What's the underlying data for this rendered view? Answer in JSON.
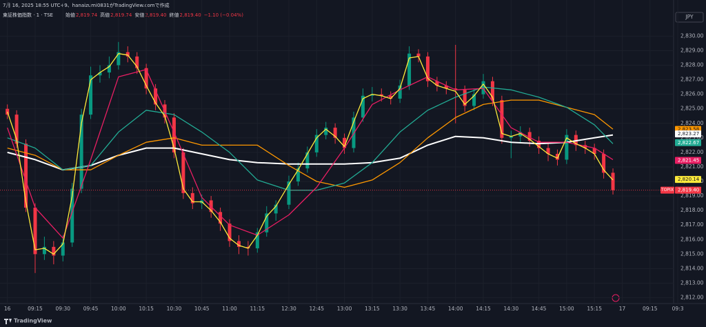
{
  "chart_data": {
    "type": "candlestick",
    "title": "7月 16, 2025 18:55 UTC+9、hanaizumi0831がTradingView.comで作成",
    "subtitle": "東証株価指数 · 1 · TSE",
    "ohlc_info": [
      {
        "label": "始値",
        "value": "2,819.74"
      },
      {
        "label": "高値",
        "value": "2,819.74"
      },
      {
        "label": "安値",
        "value": "2,819.40"
      },
      {
        "label": "終値",
        "value": "2,819.40"
      },
      {
        "label": "",
        "value": "−1.10 (−0.04%)"
      }
    ],
    "currency": "JPY",
    "brand": "TradingView",
    "colors": {
      "up": "#089981",
      "down": "#f23645",
      "last": "#f23645"
    },
    "xlim": [
      -1,
      359
    ],
    "ylim": [
      2811.6,
      2831.3
    ],
    "grid": true,
    "xticks": [
      {
        "value": 0,
        "label": "16"
      },
      {
        "value": 15,
        "label": "09:15"
      },
      {
        "value": 30,
        "label": "09:30"
      },
      {
        "value": 45,
        "label": "09:45"
      },
      {
        "value": 60,
        "label": "10:00"
      },
      {
        "value": 75,
        "label": "10:15"
      },
      {
        "value": 90,
        "label": "10:30"
      },
      {
        "value": 105,
        "label": "10:45"
      },
      {
        "value": 120,
        "label": "11:00"
      },
      {
        "value": 135,
        "label": "11:15"
      },
      {
        "value": 152,
        "label": "12:30"
      },
      {
        "value": 167,
        "label": "12:45"
      },
      {
        "value": 182,
        "label": "13:00"
      },
      {
        "value": 197,
        "label": "13:15"
      },
      {
        "value": 212,
        "label": "13:30"
      },
      {
        "value": 227,
        "label": "13:45"
      },
      {
        "value": 242,
        "label": "14:00"
      },
      {
        "value": 257,
        "label": "14:15"
      },
      {
        "value": 272,
        "label": "14:30"
      },
      {
        "value": 287,
        "label": "14:45"
      },
      {
        "value": 302,
        "label": "15:00"
      },
      {
        "value": 317,
        "label": "15:15"
      },
      {
        "value": 332,
        "label": "17"
      },
      {
        "value": 347,
        "label": "09:15"
      },
      {
        "value": 362,
        "label": "09:3"
      }
    ],
    "yticks": [
      {
        "value": 2812,
        "label": "2,812.00"
      },
      {
        "value": 2813,
        "label": "2,813.00"
      },
      {
        "value": 2814,
        "label": "2,814.00"
      },
      {
        "value": 2815,
        "label": "2,815.00"
      },
      {
        "value": 2816,
        "label": "2,816.00"
      },
      {
        "value": 2817,
        "label": "2,817.00"
      },
      {
        "value": 2818,
        "label": "2,818.00"
      },
      {
        "value": 2819,
        "label": "2,819.00"
      },
      {
        "value": 2820,
        "label": "2,820.00"
      },
      {
        "value": 2821,
        "label": "2,821.00"
      },
      {
        "value": 2822,
        "label": "2,822.00"
      },
      {
        "value": 2823,
        "label": "2,823.00"
      },
      {
        "value": 2824,
        "label": "2,824.00"
      },
      {
        "value": 2825,
        "label": "2,825.00"
      },
      {
        "value": 2826,
        "label": "2,826.00"
      },
      {
        "value": 2827,
        "label": "2,827.00"
      },
      {
        "value": 2828,
        "label": "2,828.00"
      },
      {
        "value": 2829,
        "label": "2,829.00"
      },
      {
        "value": 2830,
        "label": "2,830.00"
      }
    ],
    "candles": {
      "x": [
        0,
        5,
        10,
        15,
        20,
        25,
        30,
        35,
        40,
        45,
        50,
        55,
        60,
        65,
        70,
        75,
        80,
        85,
        90,
        95,
        100,
        105,
        110,
        115,
        120,
        125,
        130,
        135,
        140,
        145,
        152,
        157,
        162,
        167,
        172,
        177,
        182,
        187,
        192,
        197,
        202,
        207,
        212,
        217,
        222,
        227,
        232,
        237,
        242,
        247,
        252,
        257,
        262,
        267,
        272,
        277,
        282,
        287,
        292,
        297,
        302,
        307,
        312,
        317,
        322,
        327
      ],
      "open": [
        2825.0,
        2824.6,
        2822.6,
        2818.2,
        2815.0,
        2815.5,
        2814.9,
        2815.8,
        2819.5,
        2824.6,
        2827.3,
        2827.5,
        2828.0,
        2828.9,
        2828.6,
        2827.8,
        2826.4,
        2825.3,
        2824.4,
        2822.0,
        2819.2,
        2818.5,
        2818.7,
        2817.9,
        2817.1,
        2815.9,
        2815.5,
        2815.4,
        2816.5,
        2817.8,
        2818.4,
        2820.0,
        2820.9,
        2822.0,
        2823.2,
        2823.7,
        2823.0,
        2822.3,
        2824.4,
        2825.9,
        2826.0,
        2825.9,
        2825.7,
        2826.6,
        2828.8,
        2828.6,
        2826.9,
        2826.6,
        2826.4,
        2826.3,
        2825.2,
        2826.0,
        2826.9,
        2825.6,
        2823.0,
        2823.1,
        2823.4,
        2822.8,
        2822.3,
        2821.9,
        2821.5,
        2823.2,
        2822.5,
        2822.3,
        2821.9,
        2820.6
      ],
      "high": [
        2825.3,
        2824.9,
        2822.9,
        2818.5,
        2816.2,
        2815.9,
        2816.3,
        2819.9,
        2825.0,
        2827.9,
        2828.0,
        2828.6,
        2829.6,
        2829.3,
        2828.9,
        2828.1,
        2826.7,
        2825.6,
        2824.7,
        2822.3,
        2819.6,
        2819.1,
        2819.0,
        2818.2,
        2817.4,
        2816.3,
        2815.9,
        2816.8,
        2818.3,
        2818.7,
        2820.4,
        2821.3,
        2822.4,
        2823.6,
        2824.1,
        2824.0,
        2823.3,
        2824.8,
        2826.4,
        2826.5,
        2826.4,
        2826.2,
        2827.0,
        2829.3,
        2829.1,
        2828.9,
        2827.2,
        2826.9,
        2829.4,
        2826.6,
        2826.4,
        2827.4,
        2827.2,
        2825.9,
        2823.5,
        2823.8,
        2823.7,
        2823.1,
        2822.6,
        2822.2,
        2823.6,
        2823.5,
        2822.8,
        2822.6,
        2822.2,
        2820.9
      ],
      "low": [
        2824.3,
        2822.3,
        2817.9,
        2813.7,
        2814.6,
        2814.3,
        2814.5,
        2815.5,
        2819.2,
        2824.3,
        2826.8,
        2827.1,
        2827.7,
        2828.2,
        2827.4,
        2826.0,
        2824.9,
        2824.0,
        2821.6,
        2818.8,
        2818.1,
        2818.1,
        2817.5,
        2816.6,
        2815.5,
        2815.0,
        2814.9,
        2815.1,
        2816.2,
        2817.3,
        2818.1,
        2819.7,
        2820.6,
        2821.7,
        2822.9,
        2822.6,
        2821.9,
        2822.0,
        2824.1,
        2825.5,
        2825.5,
        2825.3,
        2825.4,
        2826.3,
        2828.2,
        2826.5,
        2826.2,
        2826.0,
        2824.0,
        2824.8,
        2824.9,
        2825.7,
        2825.2,
        2822.6,
        2821.6,
        2822.7,
        2822.4,
        2821.9,
        2821.4,
        2821.1,
        2821.2,
        2822.1,
        2821.9,
        2821.5,
        2820.2,
        2819.1
      ],
      "close": [
        2824.6,
        2822.6,
        2818.2,
        2815.0,
        2815.5,
        2814.9,
        2815.8,
        2819.5,
        2824.6,
        2827.3,
        2827.5,
        2828.0,
        2828.9,
        2828.6,
        2827.8,
        2826.4,
        2825.3,
        2824.4,
        2822.0,
        2819.2,
        2818.5,
        2818.7,
        2817.9,
        2817.1,
        2815.9,
        2815.5,
        2815.4,
        2816.5,
        2817.8,
        2818.4,
        2820.0,
        2820.9,
        2822.0,
        2823.2,
        2823.7,
        2823.0,
        2822.3,
        2824.4,
        2825.9,
        2826.0,
        2825.9,
        2825.7,
        2826.6,
        2828.8,
        2828.6,
        2826.9,
        2826.6,
        2826.4,
        2826.3,
        2825.2,
        2826.0,
        2826.9,
        2825.6,
        2823.0,
        2823.1,
        2823.4,
        2822.8,
        2822.3,
        2821.9,
        2821.5,
        2823.2,
        2822.5,
        2822.3,
        2821.9,
        2820.6,
        2819.4
      ]
    },
    "series": [
      {
        "color": "#ffffff",
        "width": 2,
        "x": [
          0,
          15,
          30,
          45,
          60,
          75,
          90,
          105,
          120,
          135,
          152,
          167,
          182,
          197,
          212,
          227,
          242,
          257,
          272,
          287,
          302,
          317,
          327
        ],
        "values": [
          2822.0,
          2821.5,
          2820.8,
          2821.1,
          2821.8,
          2822.3,
          2822.3,
          2821.9,
          2821.5,
          2821.3,
          2821.2,
          2821.2,
          2821.2,
          2821.3,
          2821.6,
          2822.5,
          2823.1,
          2823.0,
          2822.7,
          2822.6,
          2822.7,
          2823.0,
          2823.2
        ]
      },
      {
        "color": "#ff9800",
        "width": 1.3,
        "x": [
          0,
          15,
          30,
          45,
          60,
          75,
          90,
          105,
          120,
          135,
          152,
          167,
          182,
          197,
          212,
          227,
          242,
          257,
          272,
          287,
          302,
          317,
          327
        ],
        "values": [
          2822.3,
          2821.8,
          2820.8,
          2820.8,
          2821.8,
          2822.7,
          2823.0,
          2822.5,
          2822.5,
          2822.5,
          2821.1,
          2820.0,
          2819.6,
          2820.1,
          2821.3,
          2823.0,
          2824.4,
          2825.3,
          2825.6,
          2825.6,
          2825.1,
          2824.6,
          2823.6
        ]
      },
      {
        "color": "#22ab94",
        "width": 1.3,
        "x": [
          0,
          15,
          30,
          45,
          60,
          75,
          90,
          105,
          120,
          135,
          152,
          167,
          182,
          197,
          212,
          227,
          242,
          257,
          272,
          287,
          302,
          317,
          327
        ],
        "values": [
          2823.0,
          2822.3,
          2820.8,
          2821.1,
          2823.4,
          2824.9,
          2824.6,
          2823.4,
          2822.0,
          2820.1,
          2819.4,
          2819.4,
          2819.9,
          2821.3,
          2823.4,
          2824.9,
          2825.8,
          2826.5,
          2826.3,
          2825.8,
          2825.1,
          2823.9,
          2822.6
        ]
      },
      {
        "color": "#e91e63",
        "width": 1.3,
        "x": [
          0,
          15,
          30,
          45,
          60,
          75,
          90,
          105,
          120,
          135,
          152,
          167,
          182,
          197,
          212,
          227,
          242,
          257,
          272,
          287,
          302,
          317,
          327
        ],
        "values": [
          2823.7,
          2818.2,
          2816.1,
          2821.5,
          2827.2,
          2827.7,
          2823.4,
          2818.9,
          2817.0,
          2816.3,
          2817.7,
          2819.6,
          2822.3,
          2825.3,
          2826.3,
          2827.2,
          2826.3,
          2826.4,
          2823.7,
          2822.7,
          2822.7,
          2822.3,
          2821.5
        ]
      },
      {
        "color": "#ffeb3b",
        "width": 1.3,
        "x": [
          0,
          5,
          10,
          15,
          20,
          25,
          30,
          35,
          40,
          45,
          50,
          55,
          60,
          65,
          70,
          75,
          80,
          85,
          90,
          95,
          100,
          105,
          110,
          115,
          120,
          125,
          130,
          135,
          140,
          145,
          152,
          157,
          162,
          167,
          172,
          177,
          182,
          187,
          192,
          197,
          202,
          207,
          212,
          217,
          222,
          227,
          232,
          237,
          242,
          247,
          252,
          257,
          262,
          267,
          272,
          277,
          282,
          287,
          292,
          297,
          302,
          307,
          312,
          317,
          322,
          327
        ],
        "values": [
          2824.8,
          2822.9,
          2818.6,
          2815.3,
          2815.4,
          2815.0,
          2815.7,
          2819.0,
          2824.0,
          2827.0,
          2827.5,
          2827.9,
          2828.8,
          2828.7,
          2827.9,
          2826.6,
          2825.4,
          2824.5,
          2822.3,
          2819.5,
          2818.6,
          2818.6,
          2818.0,
          2817.2,
          2816.1,
          2815.6,
          2815.4,
          2816.3,
          2817.6,
          2818.3,
          2819.8,
          2820.8,
          2821.9,
          2823.0,
          2823.6,
          2823.1,
          2822.4,
          2824.1,
          2825.7,
          2826.0,
          2825.9,
          2825.7,
          2826.4,
          2828.5,
          2828.6,
          2827.1,
          2826.6,
          2826.4,
          2826.2,
          2825.3,
          2825.9,
          2826.7,
          2825.8,
          2823.3,
          2823.1,
          2823.3,
          2822.9,
          2822.4,
          2821.9,
          2821.6,
          2823.0,
          2822.6,
          2822.3,
          2821.9,
          2820.8,
          2820.1
        ]
      }
    ],
    "price_labels": [
      {
        "value": 2823.58,
        "label": "2,823.58",
        "color": "#ff9800",
        "text_color": "#131722"
      },
      {
        "value": 2823.27,
        "label": "2,823.27",
        "color": "#ffffff",
        "text_color": "#131722"
      },
      {
        "value": 2822.67,
        "label": "2,822.67",
        "color": "#22ab94",
        "text_color": "#ffffff"
      },
      {
        "value": 2821.45,
        "label": "2,821.45",
        "color": "#e91e63",
        "text_color": "#ffffff"
      },
      {
        "value": 2820.14,
        "label": "2,820.14",
        "color": "#ffeb3b",
        "text_color": "#131722"
      },
      {
        "value": 2819.4,
        "label": "2,819.40",
        "color": "#f23645",
        "text_color": "#ffffff",
        "tag": "TOPIX"
      }
    ]
  }
}
